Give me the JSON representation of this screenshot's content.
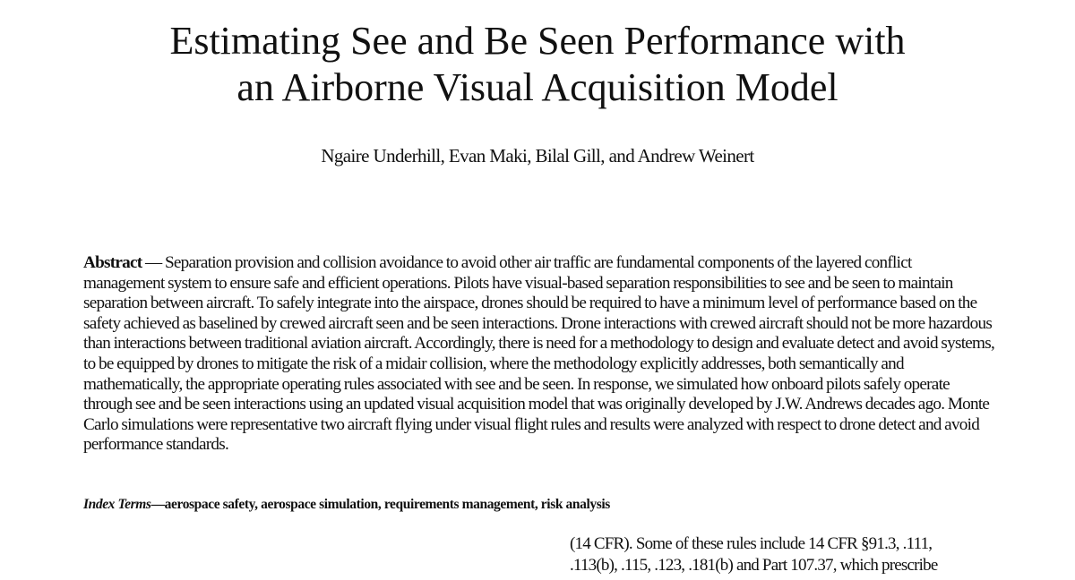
{
  "header": {
    "title_lines": [
      "Estimating See and Be Seen Performance with",
      "an Airborne Visual Acquisition Model"
    ],
    "authors": "Ngaire Underhill,  Evan Maki,  Bilal  Gill,  and Andrew Weinert"
  },
  "abstract": {
    "label": "Abstract",
    "text": " — Separation provision and collision avoidance to avoid other air traffic are fundamental components of the layered conflict management system to ensure safe and efficient operations. Pilots have visual-based separation responsibilities to see and be seen to maintain separation between aircraft. To safely integrate into the airspace, drones should be required to have a minimum level of performance based on the safety achieved as baselined by crewed aircraft seen and be seen interactions. Drone interactions with crewed aircraft should not be more hazardous than interactions between traditional aviation aircraft. Accordingly, there is need for a methodology to design and evaluate detect and avoid systems, to be equipped by drones to mitigate the risk of a midair collision, where the methodology explicitly addresses, both semantically and mathematically, the appropriate operating rules associated with see and be seen. In response, we simulated how onboard pilots safely operate through see and be seen interactions using an updated visual acquisition model that was originally developed by J.W. Andrews decades ago. Monte Carlo simulations were representative two aircraft flying under visual flight rules and results were analyzed with respect to drone detect and avoid performance standards."
  },
  "index_terms": {
    "label": "Index Terms",
    "text": "—aerospace safety, aerospace simulation, requirements management, risk analysis"
  },
  "right_column": {
    "lines": [
      "(14 CFR).  Some of these rules include 14 CFR  §91.3, .111,",
      ".113(b), .115, .123, .181(b)  and Part 107.37, which prescribe"
    ]
  }
}
